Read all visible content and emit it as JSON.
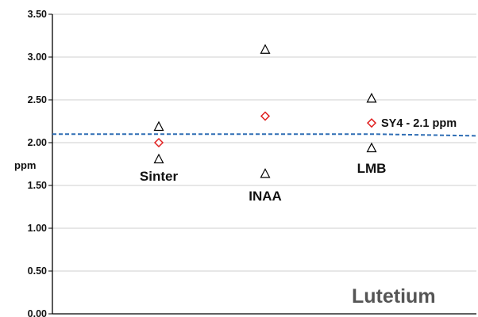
{
  "chart_data": {
    "type": "scatter",
    "title": "Lutetium",
    "ylabel": "ppm",
    "xlabel": "",
    "ylim": [
      0,
      3.5
    ],
    "y_ticks": [
      "0.00",
      "0.50",
      "1.00",
      "1.50",
      "2.00",
      "2.50",
      "3.00",
      "3.50"
    ],
    "grid": "horizontal",
    "categories": [
      "Sinter",
      "INAA",
      "LMB"
    ],
    "series": [
      {
        "marker": "triangle",
        "color": "#000000",
        "x": [
          "Sinter",
          "Sinter",
          "INAA",
          "INAA",
          "LMB",
          "LMB"
        ],
        "y": [
          2.19,
          1.81,
          3.09,
          1.64,
          2.52,
          1.94
        ]
      },
      {
        "marker": "diamond",
        "color": "#e02020",
        "x": [
          "Sinter",
          "INAA",
          "LMB"
        ],
        "y": [
          2.0,
          2.31,
          2.23
        ]
      }
    ],
    "reference_line": {
      "label": "SY4 - 2.1 ppm",
      "color": "#2e6db4",
      "style": "dashed",
      "y": [
        2.1,
        2.1,
        2.08
      ]
    }
  }
}
